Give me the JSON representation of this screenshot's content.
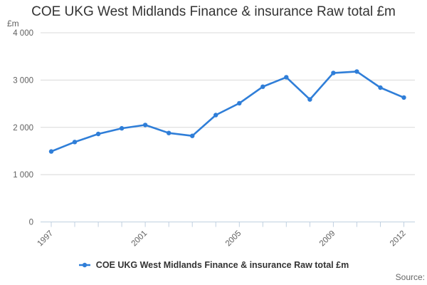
{
  "chart_data": {
    "type": "line",
    "title": "COE UKG West Midlands Finance & insurance Raw total £m",
    "ylabel": "£m",
    "x": [
      1997,
      1998,
      1999,
      2000,
      2001,
      2002,
      2003,
      2004,
      2005,
      2006,
      2007,
      2008,
      2009,
      2010,
      2011,
      2012
    ],
    "series": [
      {
        "name": "COE UKG West Midlands Finance & insurance Raw total £m",
        "values": [
          1490,
          1690,
          1860,
          1980,
          2050,
          1880,
          1820,
          2260,
          2510,
          2860,
          3060,
          2590,
          3150,
          3180,
          2840,
          2630
        ]
      }
    ],
    "ylim": [
      0,
      4000
    ],
    "y_ticks": [
      0,
      1000,
      2000,
      3000,
      4000
    ],
    "y_tick_labels": [
      "0",
      "1 000",
      "2 000",
      "3 000",
      "4 000"
    ],
    "x_label_years": [
      1997,
      2001,
      2005,
      2009,
      2012
    ],
    "x_tick_labels": [
      "1997",
      "2001",
      "2005",
      "2009",
      "2012"
    ],
    "grid": "horizontal-gridlines",
    "legend_position": "bottom-center",
    "x_label_rotation": -45,
    "colors": {
      "series": "#2f7ed8",
      "axis": "#c0d0e0",
      "gridline": "#d8d8d8",
      "tick_label": "#606060",
      "title": "#333333",
      "legend_text": "#333333",
      "source_text": "#666666"
    }
  },
  "legend": {
    "label": "COE UKG West Midlands Finance & insurance Raw total £m"
  },
  "source": {
    "label": "Source:"
  }
}
